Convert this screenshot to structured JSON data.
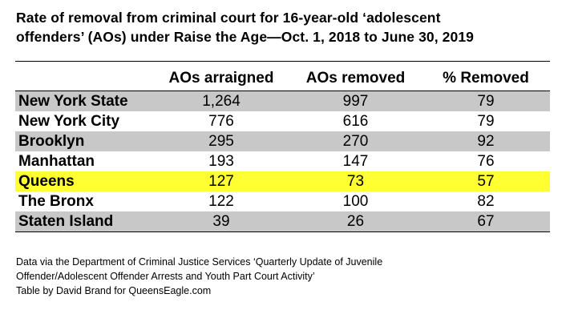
{
  "title_lines": [
    "Rate of removal from criminal court for 16-year-old ‘adolescent",
    "offenders’ (AOs) under Raise the Age—Oct. 1, 2018 to June 30, 2019"
  ],
  "colors": {
    "row_shaded": "#c8c8c8",
    "row_plain": "#ffffff",
    "row_highlight": "#ffff33",
    "text": "#000000"
  },
  "chart_data": {
    "type": "table",
    "title": "Rate of removal from criminal court for 16-year-old ‘adolescent offenders’ (AOs) under Raise the Age—Oct. 1, 2018 to June 30, 2019",
    "columns": [
      "",
      "AOs arraigned",
      "AOs removed",
      "% Removed"
    ],
    "rows": [
      {
        "name": "New York State",
        "cells": [
          "1,264",
          "997",
          "79"
        ],
        "style": "shaded"
      },
      {
        "name": "New York City",
        "cells": [
          "776",
          "616",
          "79"
        ],
        "style": "plain"
      },
      {
        "name": "Brooklyn",
        "cells": [
          "295",
          "270",
          "92"
        ],
        "style": "shaded"
      },
      {
        "name": "Manhattan",
        "cells": [
          "193",
          "147",
          "76"
        ],
        "style": "plain"
      },
      {
        "name": "Queens",
        "cells": [
          "127",
          "73",
          "57"
        ],
        "style": "highlight"
      },
      {
        "name": "The Bronx",
        "cells": [
          "122",
          "100",
          "82"
        ],
        "style": "plain"
      },
      {
        "name": "Staten Island",
        "cells": [
          "39",
          "26",
          "67"
        ],
        "style": "shaded"
      }
    ]
  },
  "notes": [
    "Data via the Department of Criminal Justice Services ‘Quarterly Update of Juvenile",
    "Offender/Adolescent Offender Arrests and Youth Part Court Activity’",
    "Table by David Brand for QueensEagle.com"
  ]
}
